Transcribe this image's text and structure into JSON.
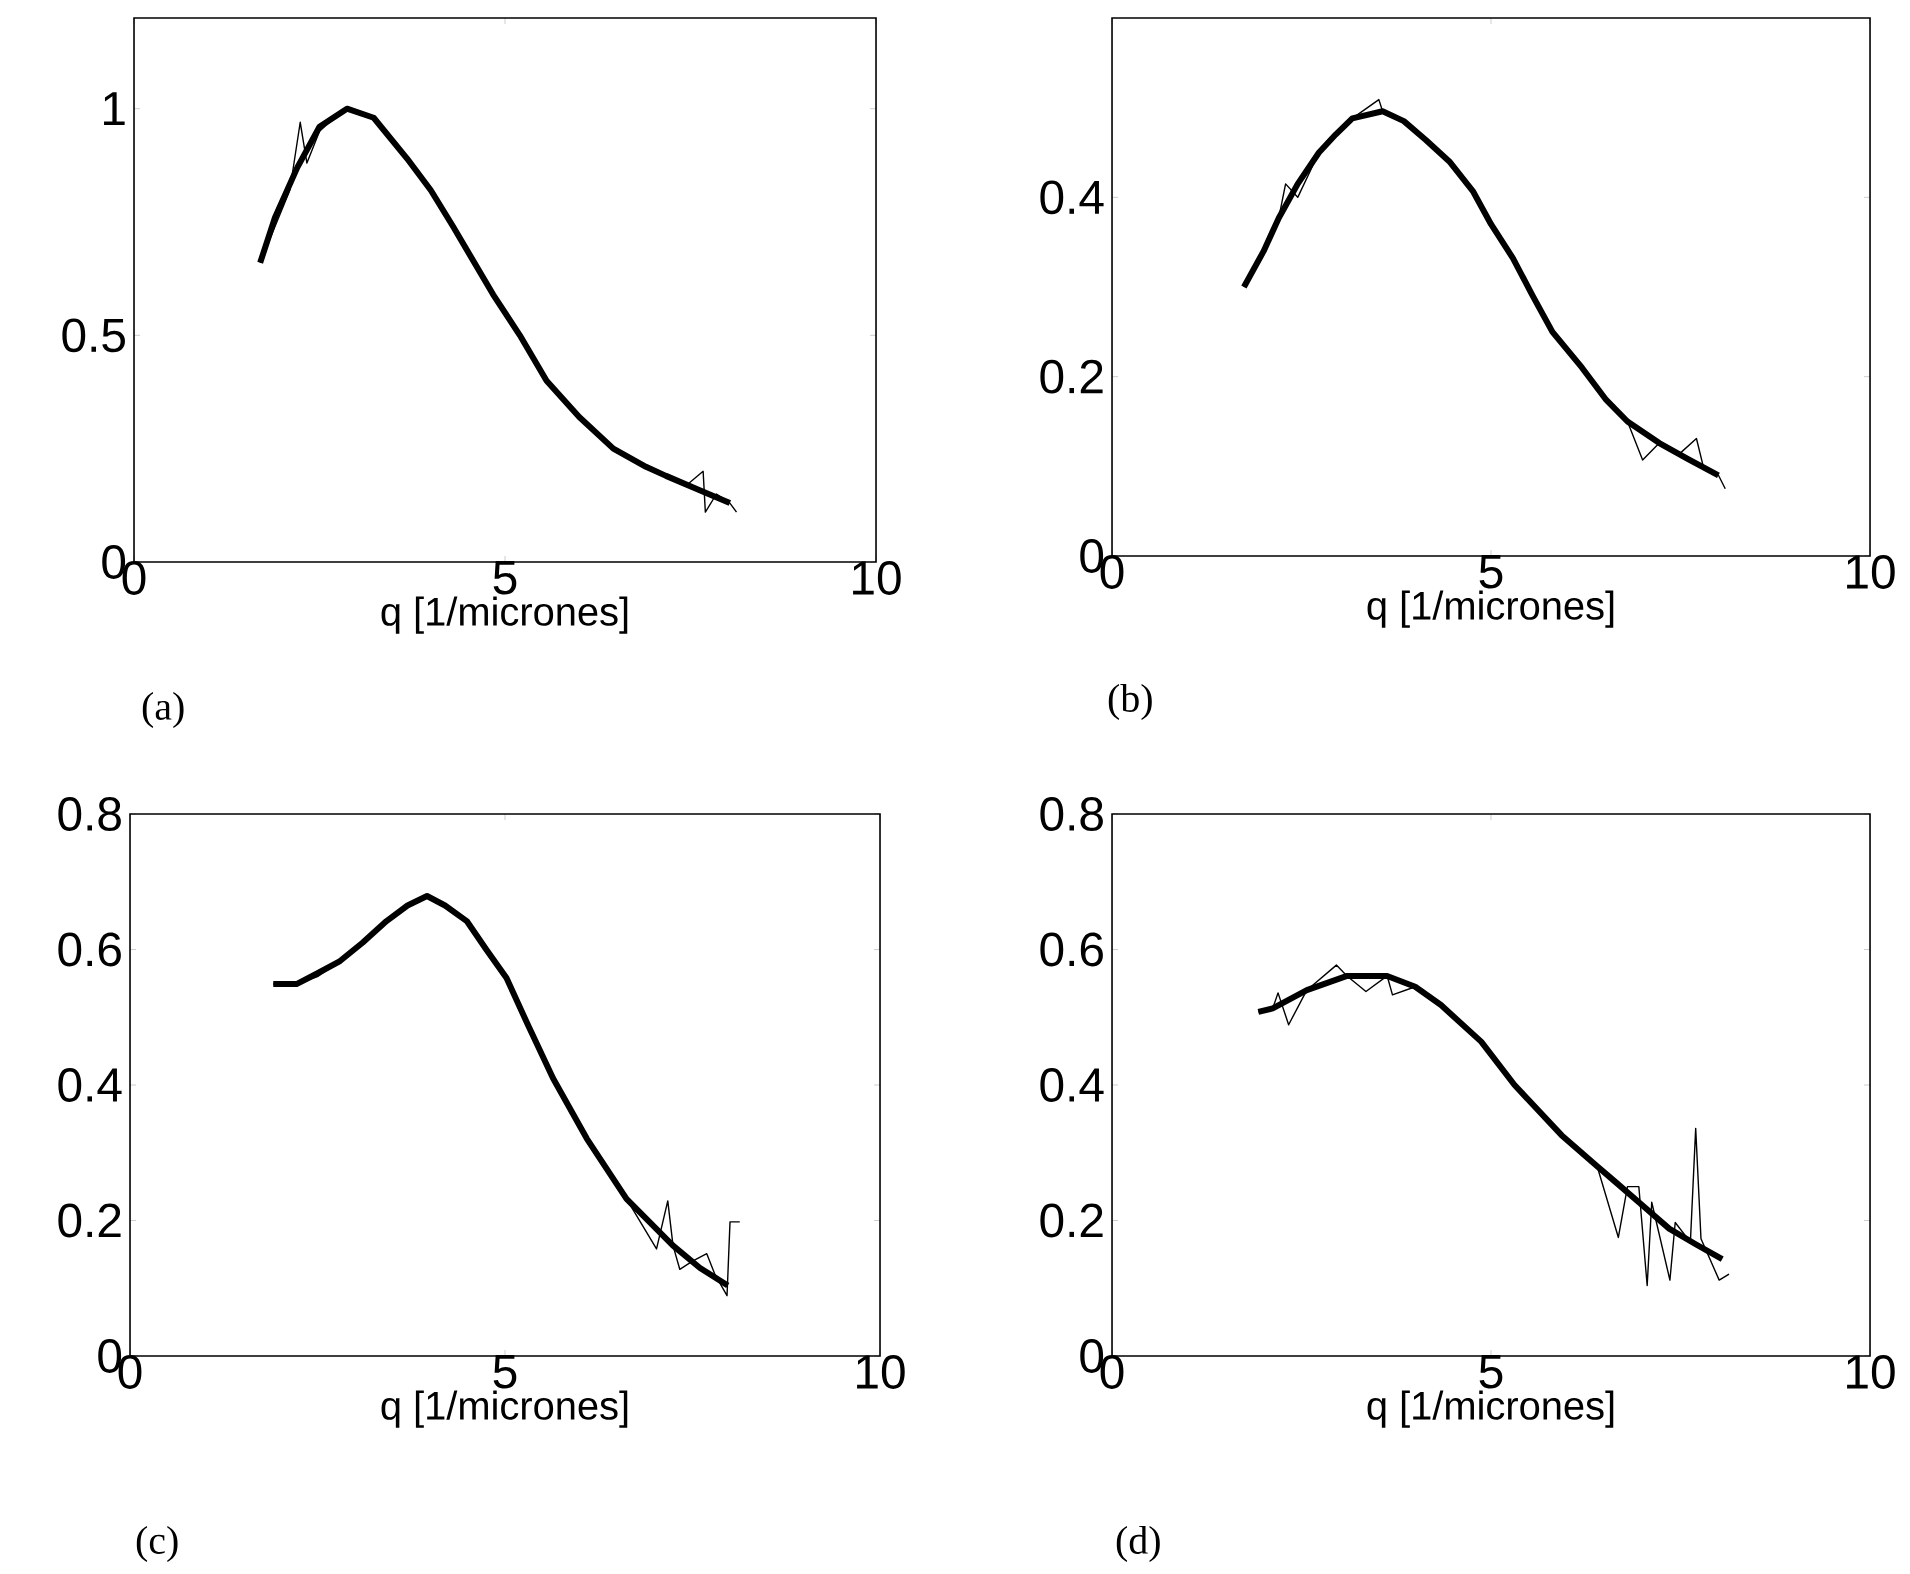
{
  "chart_data": [
    {
      "type": "line",
      "xlabel": "q [1/micrones]",
      "annotations": [
        "(a)"
      ],
      "xlim": [
        0,
        10
      ],
      "xticks": [
        0,
        5,
        10
      ],
      "ylim": [
        0,
        1.2
      ],
      "yticks": [
        0,
        0.5,
        1
      ],
      "series": [
        {
          "color": "#000000",
          "x": [
            1.7,
            1.9,
            2.1,
            2.24,
            2.33,
            2.5,
            2.7,
            2.87,
            3.05,
            3.23,
            3.45,
            3.68,
            4.0,
            4.3,
            4.6,
            4.84,
            5.2,
            5.56,
            6.0,
            6.46,
            6.9,
            7.17,
            7.45,
            7.67,
            7.7,
            7.85,
            8.03,
            8.12
          ],
          "values": [
            0.66,
            0.74,
            0.82,
            0.97,
            0.88,
            0.95,
            0.98,
            1.0,
            0.99,
            0.98,
            0.94,
            0.89,
            0.82,
            0.74,
            0.66,
            0.59,
            0.5,
            0.4,
            0.32,
            0.25,
            0.21,
            0.19,
            0.17,
            0.2,
            0.11,
            0.15,
            0.13,
            0.11
          ]
        },
        {
          "color": "#000000",
          "x": [
            1.7,
            1.9,
            2.2,
            2.5,
            2.87,
            3.23,
            3.68,
            4.0,
            4.3,
            4.84,
            5.2,
            5.56,
            6.0,
            6.46,
            6.9,
            7.17,
            7.6,
            8.03
          ],
          "values": [
            0.66,
            0.76,
            0.87,
            0.96,
            1.0,
            0.98,
            0.89,
            0.82,
            0.74,
            0.59,
            0.5,
            0.4,
            0.32,
            0.25,
            0.21,
            0.19,
            0.16,
            0.13
          ]
        }
      ]
    },
    {
      "type": "line",
      "xlabel": "q [1/micrones]",
      "annotations": [
        "(b)"
      ],
      "xlim": [
        0,
        10
      ],
      "xticks": [
        0,
        5,
        10
      ],
      "ylim": [
        0,
        0.6
      ],
      "yticks": [
        0,
        0.2,
        0.4
      ],
      "series": [
        {
          "color": "#000000",
          "x": [
            1.74,
            2.0,
            2.2,
            2.29,
            2.45,
            2.73,
            2.95,
            3.17,
            3.52,
            3.57,
            3.85,
            4.14,
            4.45,
            4.76,
            5.0,
            5.29,
            5.55,
            5.81,
            6.2,
            6.52,
            6.8,
            7.0,
            7.22,
            7.5,
            7.71,
            7.8,
            8.0,
            8.09
          ],
          "values": [
            0.3,
            0.34,
            0.377,
            0.415,
            0.4,
            0.45,
            0.47,
            0.488,
            0.509,
            0.496,
            0.485,
            0.464,
            0.44,
            0.407,
            0.37,
            0.332,
            0.29,
            0.25,
            0.21,
            0.174,
            0.15,
            0.107,
            0.126,
            0.115,
            0.131,
            0.1,
            0.09,
            0.075
          ]
        },
        {
          "color": "#000000",
          "x": [
            1.74,
            2.0,
            2.2,
            2.45,
            2.73,
            2.95,
            3.17,
            3.57,
            3.85,
            4.14,
            4.45,
            4.76,
            5.0,
            5.29,
            5.55,
            5.81,
            6.2,
            6.52,
            6.8,
            7.22,
            7.6,
            8.0
          ],
          "values": [
            0.3,
            0.34,
            0.377,
            0.415,
            0.45,
            0.47,
            0.488,
            0.496,
            0.485,
            0.464,
            0.44,
            0.407,
            0.37,
            0.332,
            0.29,
            0.25,
            0.21,
            0.174,
            0.15,
            0.126,
            0.108,
            0.09
          ]
        }
      ]
    },
    {
      "type": "line",
      "xlabel": "q [1/micrones]",
      "annotations": [
        "(c)"
      ],
      "xlim": [
        0,
        10
      ],
      "xticks": [
        0,
        5,
        10
      ],
      "ylim": [
        0,
        0.8
      ],
      "yticks": [
        0,
        0.2,
        0.4,
        0.6,
        0.8
      ],
      "series": [
        {
          "color": "#000000",
          "x": [
            1.91,
            2.22,
            2.5,
            2.8,
            3.1,
            3.42,
            3.7,
            3.96,
            4.2,
            4.49,
            4.75,
            5.02,
            5.3,
            5.64,
            6.09,
            6.62,
            7.02,
            7.17,
            7.24,
            7.33,
            7.5,
            7.69,
            7.8,
            7.96,
            8.0,
            8.13
          ],
          "values": [
            0.549,
            0.549,
            0.56,
            0.583,
            0.61,
            0.642,
            0.665,
            0.679,
            0.665,
            0.642,
            0.6,
            0.558,
            0.49,
            0.41,
            0.321,
            0.232,
            0.158,
            0.229,
            0.163,
            0.128,
            0.14,
            0.151,
            0.12,
            0.089,
            0.198,
            0.198
          ]
        },
        {
          "color": "#000000",
          "x": [
            1.91,
            2.22,
            2.5,
            2.8,
            3.1,
            3.42,
            3.7,
            3.96,
            4.2,
            4.49,
            4.75,
            5.02,
            5.3,
            5.64,
            6.09,
            6.62,
            7.24,
            7.6,
            7.97
          ],
          "values": [
            0.549,
            0.549,
            0.565,
            0.583,
            0.61,
            0.642,
            0.665,
            0.679,
            0.665,
            0.642,
            0.6,
            0.558,
            0.49,
            0.41,
            0.321,
            0.232,
            0.163,
            0.13,
            0.104
          ]
        }
      ]
    },
    {
      "type": "line",
      "xlabel": "q [1/micrones]",
      "annotations": [
        "(d)"
      ],
      "xlim": [
        0,
        10
      ],
      "xticks": [
        0,
        5,
        10
      ],
      "ylim": [
        0,
        0.8
      ],
      "yticks": [
        0,
        0.2,
        0.4,
        0.6,
        0.8
      ],
      "series": [
        {
          "color": "#000000",
          "x": [
            1.93,
            2.12,
            2.19,
            2.33,
            2.57,
            2.96,
            3.1,
            3.35,
            3.63,
            3.7,
            4.0,
            4.34,
            4.87,
            5.31,
            5.93,
            6.4,
            6.68,
            6.8,
            6.95,
            7.06,
            7.12,
            7.36,
            7.43,
            7.63,
            7.7,
            7.77,
            8.01,
            8.14
          ],
          "values": [
            0.508,
            0.513,
            0.536,
            0.489,
            0.54,
            0.577,
            0.561,
            0.538,
            0.561,
            0.533,
            0.545,
            0.518,
            0.464,
            0.4,
            0.326,
            0.28,
            0.175,
            0.25,
            0.25,
            0.104,
            0.227,
            0.112,
            0.197,
            0.168,
            0.336,
            0.173,
            0.112,
            0.121
          ]
        },
        {
          "color": "#000000",
          "x": [
            1.93,
            2.12,
            2.57,
            3.1,
            3.63,
            4.0,
            4.34,
            4.87,
            5.31,
            5.93,
            6.4,
            6.64,
            7.0,
            7.35,
            7.7,
            8.05
          ],
          "values": [
            0.508,
            0.513,
            0.54,
            0.561,
            0.561,
            0.545,
            0.518,
            0.464,
            0.4,
            0.326,
            0.28,
            0.257,
            0.222,
            0.188,
            0.165,
            0.143
          ]
        }
      ]
    }
  ]
}
